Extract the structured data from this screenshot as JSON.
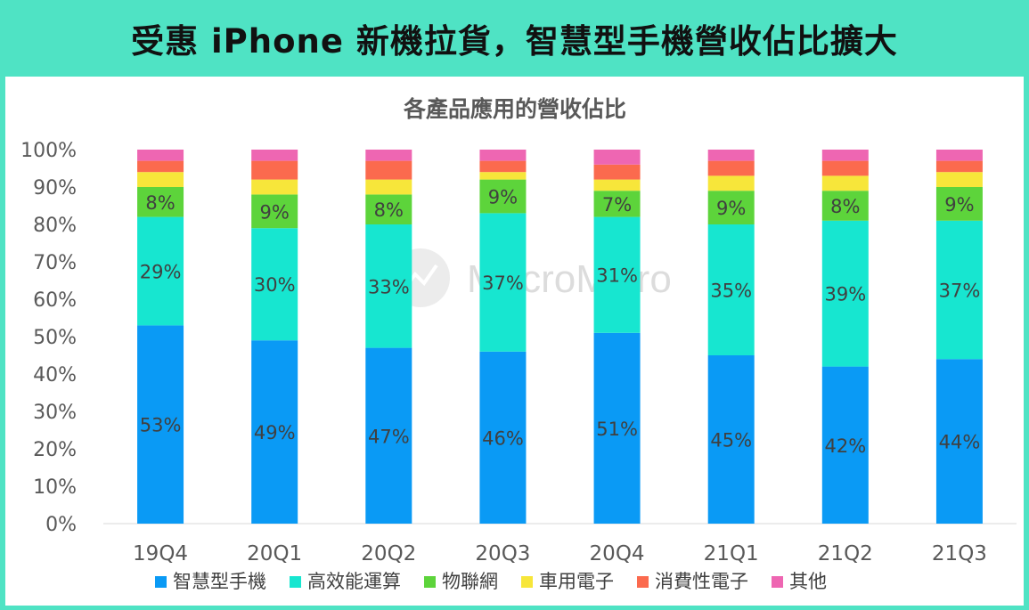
{
  "header": {
    "title": "受惠 iPhone 新機拉貨，智慧型手機營收佔比擴大"
  },
  "watermark": {
    "text": "MacroMicro"
  },
  "chart_data": {
    "type": "bar",
    "stacked": true,
    "title": "各產品應用的營收佔比",
    "categories": [
      "19Q4",
      "20Q1",
      "20Q2",
      "20Q3",
      "20Q4",
      "21Q1",
      "21Q2",
      "21Q3"
    ],
    "y_ticks": [
      "0%",
      "10%",
      "20%",
      "30%",
      "40%",
      "50%",
      "60%",
      "70%",
      "80%",
      "90%",
      "100%"
    ],
    "ylim": [
      0,
      100
    ],
    "legend_position": "bottom",
    "series": [
      {
        "name": "智慧型手機",
        "color": "#0a9af5",
        "values": [
          53,
          49,
          47,
          46,
          51,
          45,
          42,
          44
        ],
        "labels": [
          "53%",
          "49%",
          "47%",
          "46%",
          "51%",
          "45%",
          "42%",
          "44%"
        ]
      },
      {
        "name": "高效能運算",
        "color": "#17e6d0",
        "values": [
          29,
          30,
          33,
          37,
          31,
          35,
          39,
          37
        ],
        "labels": [
          "29%",
          "30%",
          "33%",
          "37%",
          "31%",
          "35%",
          "39%",
          "37%"
        ]
      },
      {
        "name": "物聯網",
        "color": "#5dd43b",
        "values": [
          8,
          9,
          8,
          9,
          7,
          9,
          8,
          9
        ],
        "labels": [
          "8%",
          "9%",
          "8%",
          "9%",
          "7%",
          "9%",
          "8%",
          "9%"
        ]
      },
      {
        "name": "車用電子",
        "color": "#f7e63a",
        "values": [
          4,
          4,
          4,
          2,
          3,
          4,
          4,
          4
        ],
        "labels": []
      },
      {
        "name": "消費性電子",
        "color": "#fb6a4e",
        "values": [
          3,
          5,
          5,
          3,
          4,
          4,
          4,
          3
        ],
        "labels": []
      },
      {
        "name": "其他",
        "color": "#ee66b2",
        "values": [
          3,
          3,
          3,
          3,
          4,
          3,
          3,
          3
        ],
        "labels": []
      }
    ]
  }
}
